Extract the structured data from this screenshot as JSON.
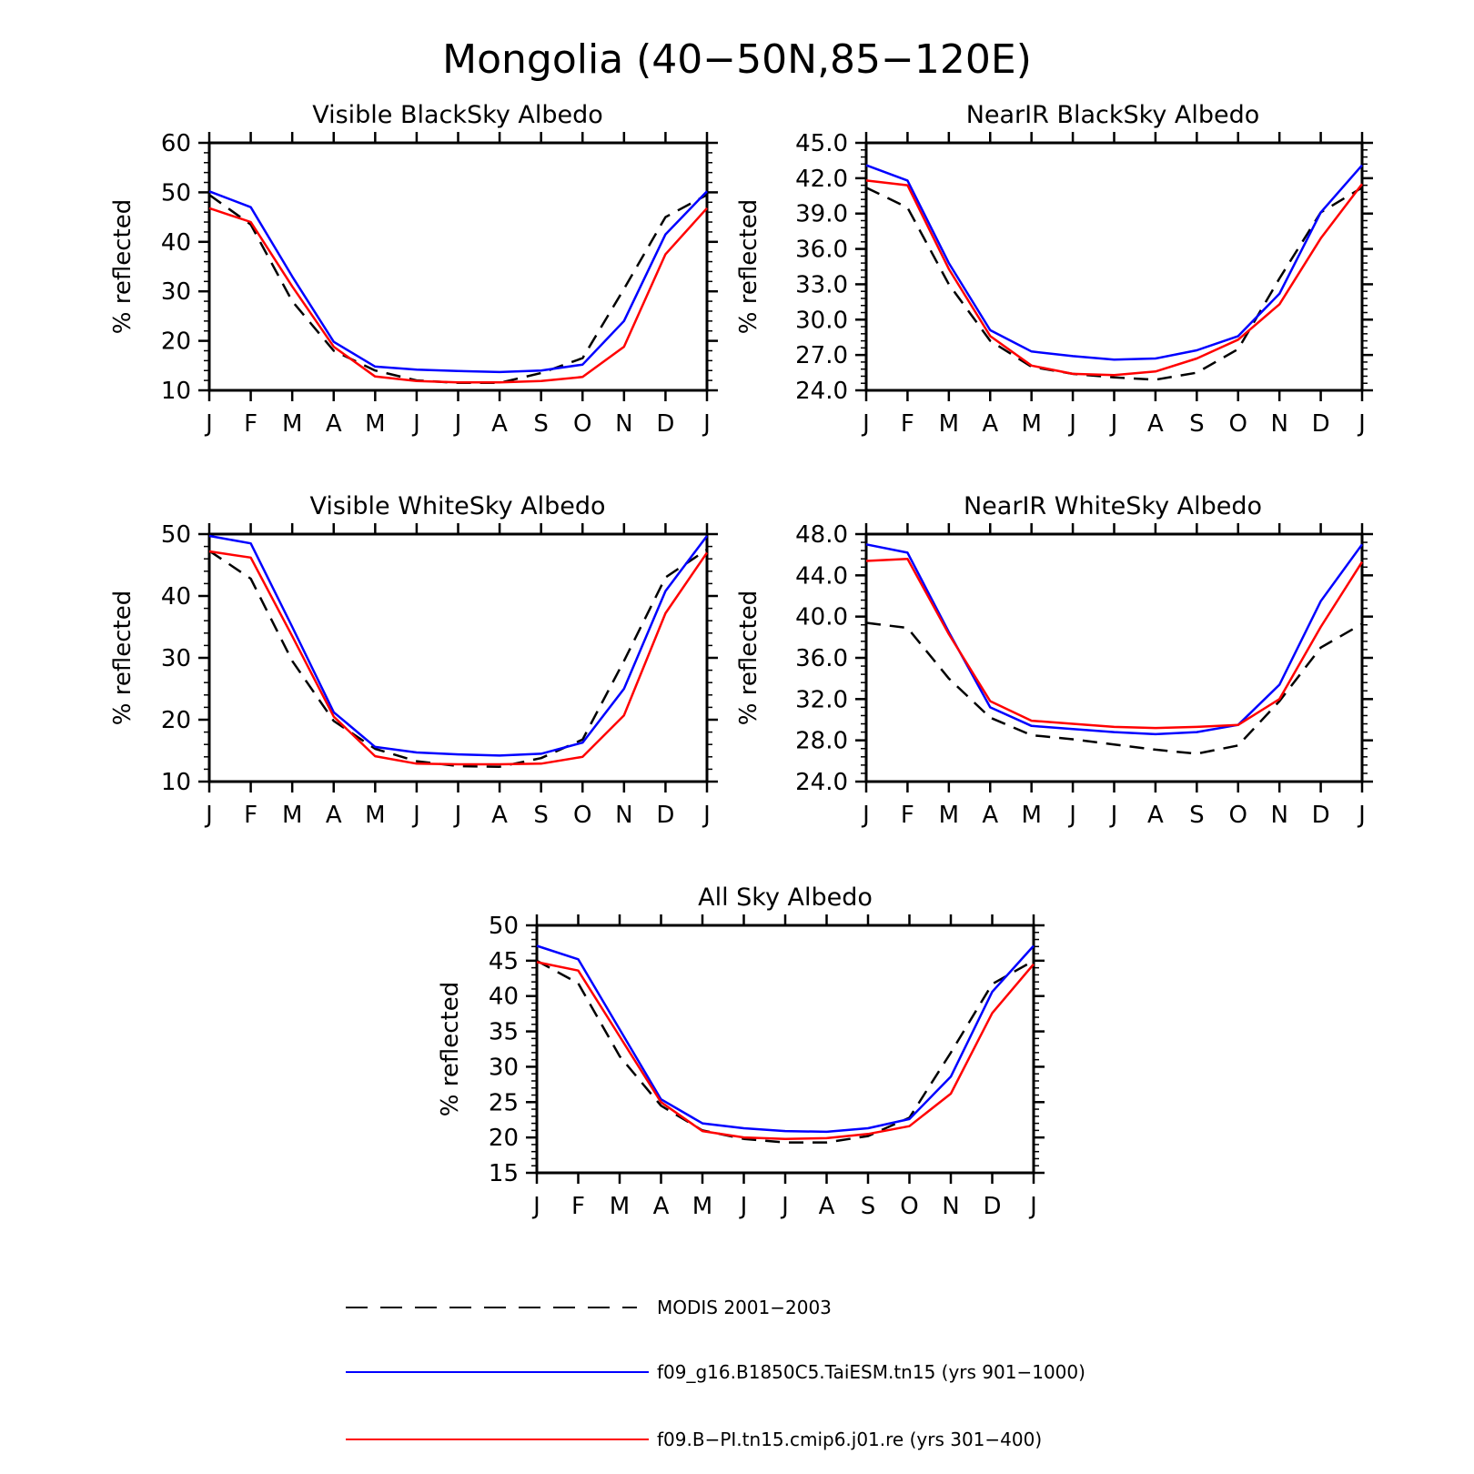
{
  "figure": {
    "title": "Mongolia (40−50N,85−120E)"
  },
  "legend": {
    "items": [
      {
        "label": "MODIS 2001−2003",
        "color": "#000000",
        "dash": true
      },
      {
        "label": "f09_g16.B1850C5.TaiESM.tn15 (yrs 901−1000)",
        "color": "#0000ff",
        "dash": false
      },
      {
        "label": "f09.B−PI.tn15.cmip6.j01.re (yrs 301−400)",
        "color": "#ff0000",
        "dash": false
      }
    ]
  },
  "chart_data": [
    {
      "type": "line",
      "title": "Visible BlackSky Albedo",
      "ylabel": "% reflected",
      "xlabel": "",
      "categories": [
        "J",
        "F",
        "M",
        "A",
        "M",
        "J",
        "J",
        "A",
        "S",
        "O",
        "N",
        "D",
        "J"
      ],
      "ylim": [
        10,
        60
      ],
      "yticks": [
        "10",
        "20",
        "30",
        "40",
        "50",
        "60"
      ],
      "grid": false,
      "series": [
        {
          "name": "MODIS 2001−2003",
          "color": "#000000",
          "dash": true,
          "values": [
            49.5,
            43.5,
            28,
            18,
            14,
            12,
            11.5,
            11.5,
            13.5,
            16.5,
            30.5,
            45,
            49.5
          ]
        },
        {
          "name": "f09_g16.B1850C5.TaiESM.tn15 (yrs 901−1000)",
          "color": "#0000ff",
          "dash": false,
          "values": [
            50.2,
            47,
            33,
            19.8,
            14.8,
            14.2,
            13.9,
            13.7,
            14,
            15.2,
            24,
            41.5,
            50.2
          ]
        },
        {
          "name": "f09.B−PI.tn15.cmip6.j01.re (yrs 301−400)",
          "color": "#ff0000",
          "dash": false,
          "values": [
            46.8,
            44,
            31,
            18.8,
            12.8,
            11.9,
            11.6,
            11.6,
            11.9,
            12.7,
            18.8,
            37.5,
            46.8
          ]
        }
      ]
    },
    {
      "type": "line",
      "title": "NearIR BlackSky Albedo",
      "ylabel": "% reflected",
      "xlabel": "",
      "categories": [
        "J",
        "F",
        "M",
        "A",
        "M",
        "J",
        "J",
        "A",
        "S",
        "O",
        "N",
        "D",
        "J"
      ],
      "ylim": [
        24,
        45
      ],
      "yticks": [
        "24.0",
        "27.0",
        "30.0",
        "33.0",
        "36.0",
        "39.0",
        "42.0",
        "45.0"
      ],
      "grid": false,
      "series": [
        {
          "name": "MODIS 2001−2003",
          "color": "#000000",
          "dash": true,
          "values": [
            41.2,
            39.5,
            33,
            28.2,
            26,
            25.4,
            25.1,
            24.9,
            25.5,
            27.5,
            33.5,
            39.1,
            41.2
          ]
        },
        {
          "name": "f09_g16.B1850C5.TaiESM.tn15 (yrs 901−1000)",
          "color": "#0000ff",
          "dash": false,
          "values": [
            43.1,
            41.8,
            34.8,
            29.1,
            27.3,
            26.9,
            26.6,
            26.7,
            27.4,
            28.6,
            32.2,
            39.1,
            43.1
          ]
        },
        {
          "name": "f09.B−PI.tn15.cmip6.j01.re (yrs 301−400)",
          "color": "#ff0000",
          "dash": false,
          "values": [
            41.8,
            41.4,
            34.3,
            28.6,
            26.1,
            25.4,
            25.3,
            25.6,
            26.7,
            28.3,
            31.3,
            36.9,
            41.5
          ]
        }
      ]
    },
    {
      "type": "line",
      "title": "Visible WhiteSky Albedo",
      "ylabel": "% reflected",
      "xlabel": "",
      "categories": [
        "J",
        "F",
        "M",
        "A",
        "M",
        "J",
        "J",
        "A",
        "S",
        "O",
        "N",
        "D",
        "J"
      ],
      "ylim": [
        10,
        50
      ],
      "yticks": [
        "10",
        "20",
        "30",
        "40",
        "50"
      ],
      "grid": false,
      "series": [
        {
          "name": "MODIS 2001−2003",
          "color": "#000000",
          "dash": true,
          "values": [
            47.3,
            42.8,
            29.5,
            19.8,
            15.3,
            13.3,
            12.5,
            12.4,
            13.8,
            16.8,
            29.5,
            43,
            47.5
          ]
        },
        {
          "name": "f09_g16.B1850C5.TaiESM.tn15 (yrs 901−1000)",
          "color": "#0000ff",
          "dash": false,
          "values": [
            49.7,
            48.5,
            35,
            21.2,
            15.6,
            14.7,
            14.4,
            14.2,
            14.5,
            16.3,
            25,
            40.8,
            49.7
          ]
        },
        {
          "name": "f09.B−PI.tn15.cmip6.j01.re (yrs 301−400)",
          "color": "#ff0000",
          "dash": false,
          "values": [
            47.2,
            46.2,
            33.5,
            20.5,
            14.1,
            12.9,
            12.8,
            12.8,
            12.9,
            14,
            20.7,
            37.2,
            47
          ]
        }
      ]
    },
    {
      "type": "line",
      "title": "NearIR WhiteSky Albedo",
      "ylabel": "% reflected",
      "xlabel": "",
      "categories": [
        "J",
        "F",
        "M",
        "A",
        "M",
        "J",
        "J",
        "A",
        "S",
        "O",
        "N",
        "D",
        "J"
      ],
      "ylim": [
        24,
        48
      ],
      "yticks": [
        "24.0",
        "28.0",
        "32.0",
        "36.0",
        "40.0",
        "44.0",
        "48.0"
      ],
      "grid": false,
      "series": [
        {
          "name": "MODIS 2001−2003",
          "color": "#000000",
          "dash": true,
          "values": [
            39.4,
            38.9,
            34,
            30.2,
            28.5,
            28.1,
            27.6,
            27.1,
            26.7,
            27.5,
            31.8,
            37,
            39.3
          ]
        },
        {
          "name": "f09_g16.B1850C5.TaiESM.tn15 (yrs 901−1000)",
          "color": "#0000ff",
          "dash": false,
          "values": [
            47,
            46.2,
            38.5,
            31.2,
            29.4,
            29.1,
            28.8,
            28.6,
            28.8,
            29.5,
            33.4,
            41.5,
            47
          ]
        },
        {
          "name": "f09.B−PI.tn15.cmip6.j01.re (yrs 301−400)",
          "color": "#ff0000",
          "dash": false,
          "values": [
            45.4,
            45.6,
            38.3,
            31.8,
            29.9,
            29.6,
            29.3,
            29.2,
            29.3,
            29.5,
            32,
            39,
            45.3
          ]
        }
      ]
    },
    {
      "type": "line",
      "title": "All Sky Albedo",
      "ylabel": "% reflected",
      "xlabel": "",
      "categories": [
        "J",
        "F",
        "M",
        "A",
        "M",
        "J",
        "J",
        "A",
        "S",
        "O",
        "N",
        "D",
        "J"
      ],
      "ylim": [
        15,
        50
      ],
      "yticks": [
        "15",
        "20",
        "25",
        "30",
        "35",
        "40",
        "45",
        "50"
      ],
      "grid": false,
      "series": [
        {
          "name": "MODIS 2001−2003",
          "color": "#000000",
          "dash": true,
          "values": [
            45,
            41.8,
            31.5,
            24.5,
            21,
            19.8,
            19.3,
            19.3,
            20.2,
            22.8,
            32,
            41.7,
            45
          ]
        },
        {
          "name": "f09_g16.B1850C5.TaiESM.tn15 (yrs 901−1000)",
          "color": "#0000ff",
          "dash": false,
          "values": [
            47.1,
            45.2,
            35.3,
            25.4,
            22,
            21.3,
            20.9,
            20.8,
            21.3,
            22.6,
            28.6,
            40.6,
            47.1
          ]
        },
        {
          "name": "f09.B−PI.tn15.cmip6.j01.re (yrs 301−400)",
          "color": "#ff0000",
          "dash": false,
          "values": [
            44.8,
            43.6,
            34.3,
            25,
            20.9,
            20,
            19.8,
            19.9,
            20.5,
            21.6,
            26.2,
            37.6,
            44.5
          ]
        }
      ]
    }
  ]
}
